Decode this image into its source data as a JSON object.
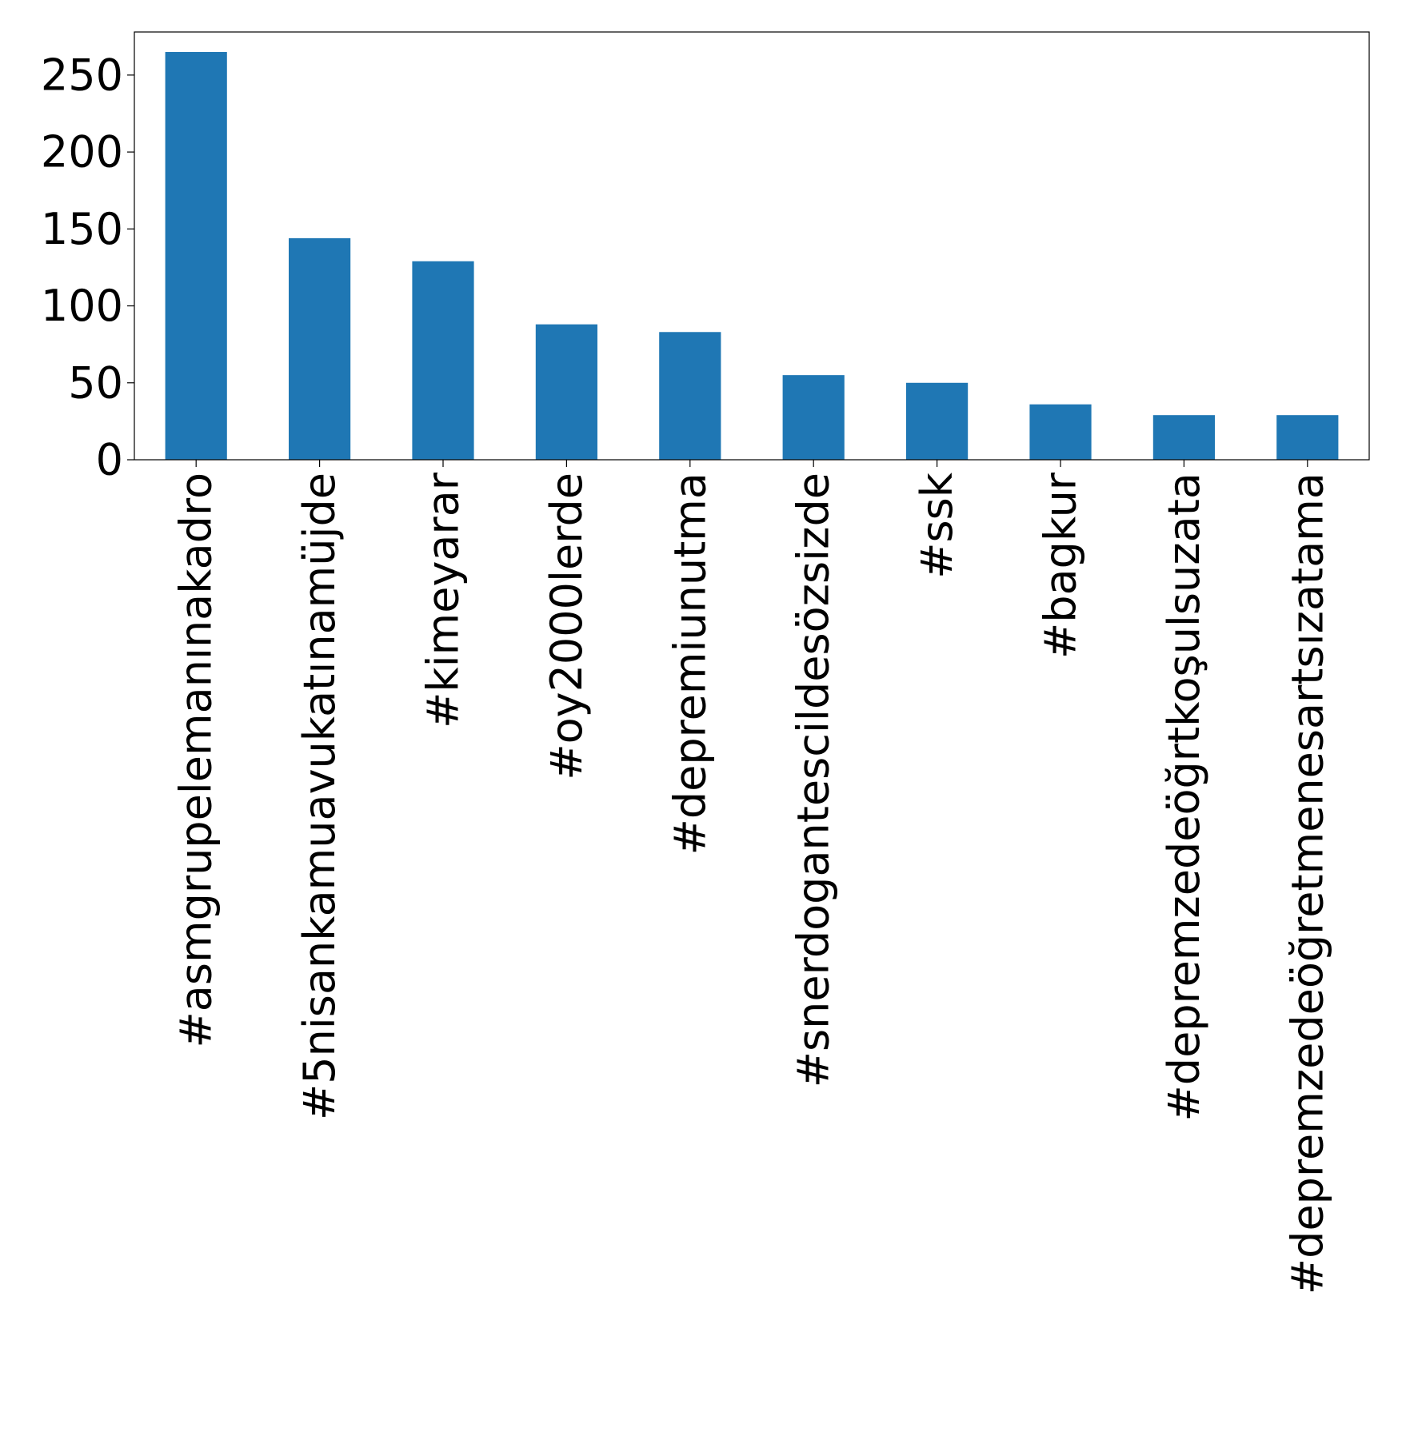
{
  "chart_data": {
    "type": "bar",
    "title": "",
    "xlabel": "",
    "ylabel": "",
    "categories": [
      "#asmgrupelemanınakadro",
      "#5nisankamuavukatınamüjde",
      "#kimeyarar",
      "#oy2000lerde",
      "#depremiunutma",
      "#snerdogantescildesözsizde",
      "#ssk",
      "#bagkur",
      "#depremzedeöğrtkoşulsuzata",
      "#depremzedeöğretmenesartsızatama"
    ],
    "values": [
      265,
      144,
      129,
      88,
      83,
      55,
      50,
      36,
      29,
      29
    ],
    "ylim": [
      0,
      278
    ],
    "yticks": [
      0,
      50,
      100,
      150,
      200,
      250
    ],
    "ytick_labels": [
      "0",
      "50",
      "100",
      "150",
      "200",
      "250"
    ],
    "grid": false,
    "legend": "none",
    "bar_color": "#1f77b4"
  }
}
